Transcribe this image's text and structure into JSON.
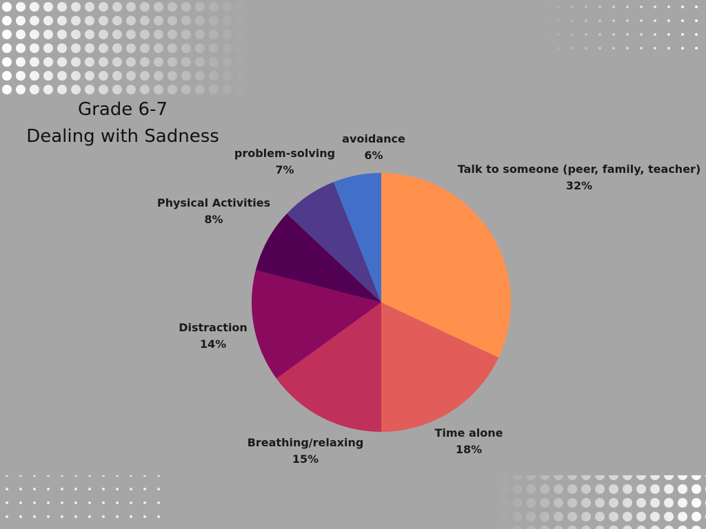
{
  "chart_data": {
    "type": "pie",
    "title": "Grade 6-7",
    "subtitle": "Dealing with Sadness",
    "categories": [
      "Talk to someone (peer, family, teacher)",
      "Time alone",
      "Breathing/relaxing",
      "Distraction",
      "Physical Activities",
      "problem-solving",
      "avoidance"
    ],
    "values": [
      32,
      18,
      15,
      14,
      8,
      7,
      6
    ],
    "value_labels": [
      "32%",
      "18%",
      "15%",
      "14%",
      "8%",
      "7%",
      "6%"
    ],
    "colors": [
      "#ff914d",
      "#e25c59",
      "#c0305a",
      "#8a0a5e",
      "#520052",
      "#4f3a8c",
      "#4270c9"
    ]
  }
}
